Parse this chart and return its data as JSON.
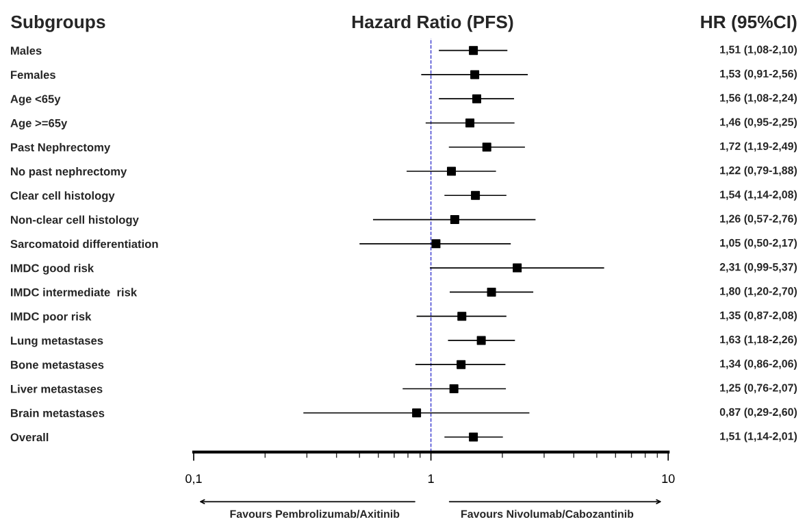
{
  "chart_data": {
    "type": "scatter",
    "orientation": "horizontal",
    "title": "Hazard Ratio (PFS)",
    "ylabel": "Subgroups",
    "y2label": "HR (95%CI)",
    "categories": [
      "Males",
      "Females",
      "Age <65y",
      "Age >=65y",
      "Past Nephrectomy",
      "No past nephrectomy",
      "Clear cell histology",
      "Non-clear cell histology",
      "Sarcomatoid differentiation",
      "IMDC good risk",
      "IMDC intermediate  risk",
      "IMDC poor risk",
      "Lung metastases",
      "Bone metastases",
      "Liver metastases",
      "Brain metastases",
      "Overall"
    ],
    "values": [
      1.51,
      1.53,
      1.56,
      1.46,
      1.72,
      1.22,
      1.54,
      1.26,
      1.05,
      2.31,
      1.8,
      1.35,
      1.63,
      1.34,
      1.25,
      0.87,
      1.51
    ],
    "errors": [
      [
        1.08,
        2.1
      ],
      [
        0.91,
        2.56
      ],
      [
        1.08,
        2.24
      ],
      [
        0.95,
        2.25
      ],
      [
        1.19,
        2.49
      ],
      [
        0.79,
        1.88
      ],
      [
        1.14,
        2.08
      ],
      [
        0.57,
        2.76
      ],
      [
        0.5,
        2.17
      ],
      [
        0.99,
        5.37
      ],
      [
        1.2,
        2.7
      ],
      [
        0.87,
        2.08
      ],
      [
        1.18,
        2.26
      ],
      [
        0.86,
        2.06
      ],
      [
        0.76,
        2.07
      ],
      [
        0.29,
        2.6
      ],
      [
        1.14,
        2.01
      ]
    ],
    "value_labels": [
      "1,51 (1,08-2,10)",
      "1,53 (0,91-2,56)",
      "1,56 (1,08-2,24)",
      "1,46 (0,95-2,25)",
      "1,72 (1,19-2,49)",
      "1,22 (0,79-1,88)",
      "1,54 (1,14-2,08)",
      "1,26 (0,57-2,76)",
      "1,05 (0,50-2,17)",
      "2,31 (0,99-5,37)",
      "1,80 (1,20-2,70)",
      "1,35 (0,87-2,08)",
      "1,63 (1,18-2,26)",
      "1,34 (0,86-2,06)",
      "1,25 (0,76-2,07)",
      "0,87 (0,29-2,60)",
      "1,51 (1,14-2,01)"
    ],
    "color": "#000000",
    "marker": "square",
    "log": "x",
    "xlim": [
      0.1,
      10
    ],
    "xticks": [
      {
        "value": 0.1,
        "label": "0,1"
      },
      1,
      10
    ],
    "ref_lines": [
      {
        "axis": "x",
        "value": 1,
        "color": "#3333cc",
        "line_style": "dashed"
      }
    ],
    "annotations": [
      "Favours Pembrolizumab/Axitinib",
      "Favours Nivolumab/Cabozantinib"
    ],
    "grid": false,
    "legend": false
  }
}
